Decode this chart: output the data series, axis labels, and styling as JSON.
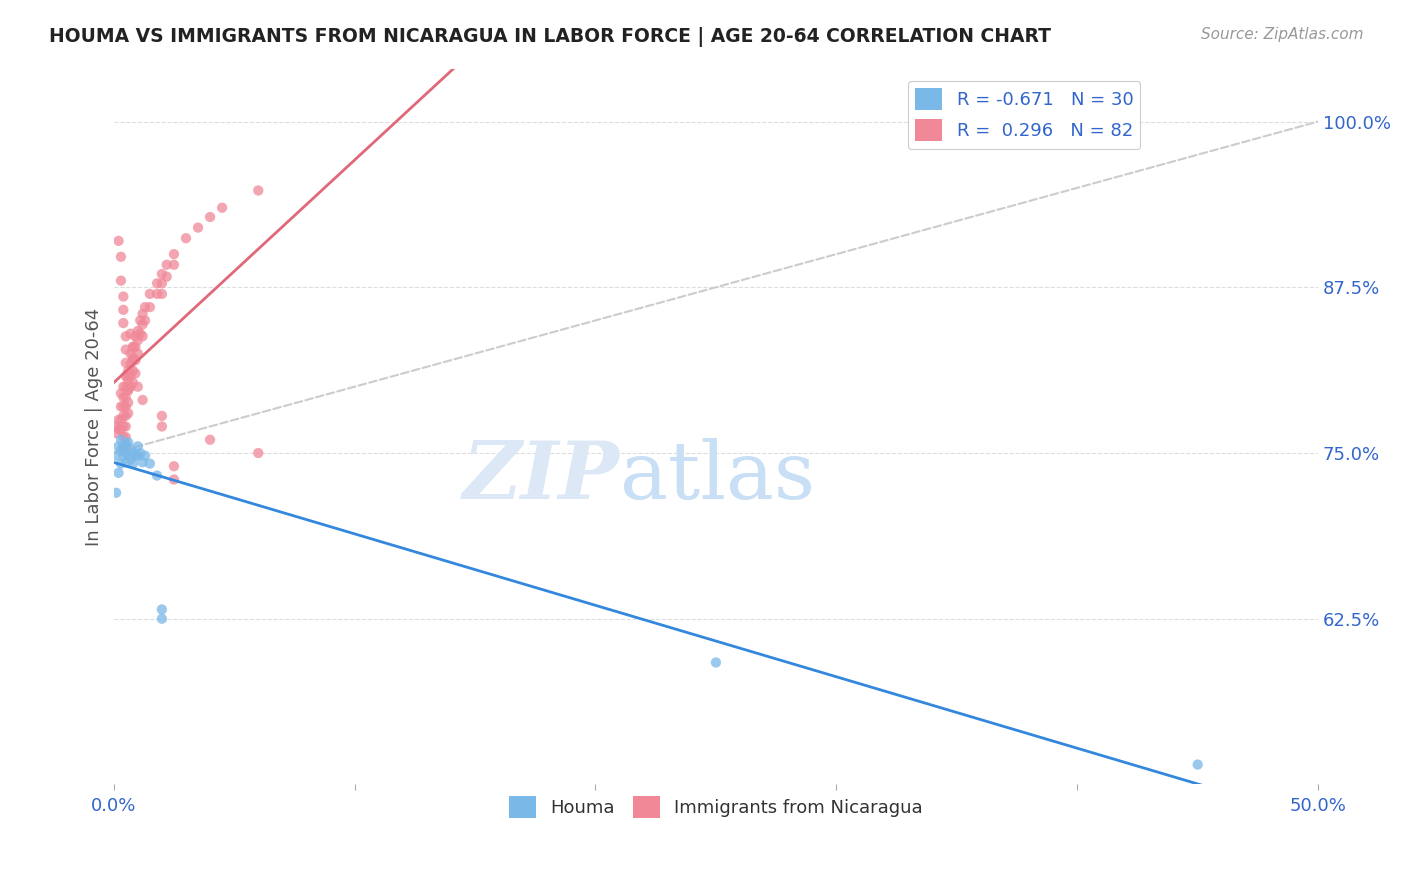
{
  "title": "HOUMA VS IMMIGRANTS FROM NICARAGUA IN LABOR FORCE | AGE 20-64 CORRELATION CHART",
  "source_text": "Source: ZipAtlas.com",
  "ylabel": "In Labor Force | Age 20-64",
  "xlim": [
    0.0,
    0.5
  ],
  "ylim": [
    0.5,
    1.04
  ],
  "ytick_positions": [
    0.625,
    0.75,
    0.875,
    1.0
  ],
  "ytick_labels": [
    "62.5%",
    "75.0%",
    "87.5%",
    "100.0%"
  ],
  "houma_color": "#7ab8e8",
  "nicaragua_color": "#f08898",
  "trend_houma_color": "#3388dd",
  "trend_nicaragua_color": "#e06878",
  "ref_line_color": "#cccccc",
  "legend_label1": "Houma",
  "legend_label2": "Immigrants from Nicaragua",
  "houma_x": [
    0.001,
    0.001,
    0.002,
    0.002,
    0.003,
    0.003,
    0.003,
    0.004,
    0.004,
    0.005,
    0.005,
    0.005,
    0.006,
    0.006,
    0.007,
    0.007,
    0.008,
    0.008,
    0.009,
    0.01,
    0.01,
    0.011,
    0.012,
    0.013,
    0.015,
    0.018,
    0.02,
    0.02,
    0.25,
    0.45
  ],
  "houma_y": [
    0.748,
    0.72,
    0.755,
    0.735,
    0.76,
    0.752,
    0.742,
    0.755,
    0.748,
    0.757,
    0.75,
    0.743,
    0.758,
    0.748,
    0.753,
    0.745,
    0.75,
    0.742,
    0.748,
    0.755,
    0.748,
    0.75,
    0.743,
    0.748,
    0.742,
    0.733,
    0.632,
    0.625,
    0.592,
    0.515
  ],
  "nic_x": [
    0.001,
    0.001,
    0.002,
    0.002,
    0.003,
    0.003,
    0.003,
    0.003,
    0.004,
    0.004,
    0.004,
    0.004,
    0.004,
    0.004,
    0.004,
    0.005,
    0.005,
    0.005,
    0.005,
    0.005,
    0.005,
    0.005,
    0.005,
    0.006,
    0.006,
    0.006,
    0.006,
    0.006,
    0.007,
    0.007,
    0.007,
    0.007,
    0.008,
    0.008,
    0.008,
    0.008,
    0.009,
    0.009,
    0.009,
    0.01,
    0.01,
    0.01,
    0.011,
    0.011,
    0.012,
    0.012,
    0.012,
    0.013,
    0.013,
    0.015,
    0.015,
    0.018,
    0.018,
    0.02,
    0.02,
    0.02,
    0.022,
    0.022,
    0.025,
    0.025,
    0.03,
    0.035,
    0.04,
    0.045,
    0.06,
    0.002,
    0.003,
    0.003,
    0.004,
    0.004,
    0.004,
    0.005,
    0.005,
    0.005,
    0.006,
    0.006,
    0.007,
    0.008,
    0.008,
    0.009,
    0.01,
    0.012,
    0.02,
    0.02,
    0.025,
    0.025,
    0.04,
    0.06
  ],
  "nic_y": [
    0.77,
    0.765,
    0.775,
    0.768,
    0.795,
    0.785,
    0.775,
    0.768,
    0.8,
    0.792,
    0.785,
    0.778,
    0.77,
    0.762,
    0.755,
    0.808,
    0.8,
    0.792,
    0.785,
    0.778,
    0.77,
    0.762,
    0.755,
    0.812,
    0.805,
    0.797,
    0.788,
    0.78,
    0.825,
    0.817,
    0.808,
    0.8,
    0.83,
    0.822,
    0.812,
    0.803,
    0.838,
    0.83,
    0.82,
    0.842,
    0.835,
    0.825,
    0.85,
    0.84,
    0.855,
    0.847,
    0.838,
    0.86,
    0.85,
    0.87,
    0.86,
    0.878,
    0.87,
    0.885,
    0.878,
    0.87,
    0.892,
    0.883,
    0.9,
    0.892,
    0.912,
    0.92,
    0.928,
    0.935,
    0.948,
    0.91,
    0.898,
    0.88,
    0.868,
    0.858,
    0.848,
    0.838,
    0.828,
    0.818,
    0.808,
    0.798,
    0.84,
    0.83,
    0.82,
    0.81,
    0.8,
    0.79,
    0.778,
    0.77,
    0.74,
    0.73,
    0.76,
    0.75
  ]
}
